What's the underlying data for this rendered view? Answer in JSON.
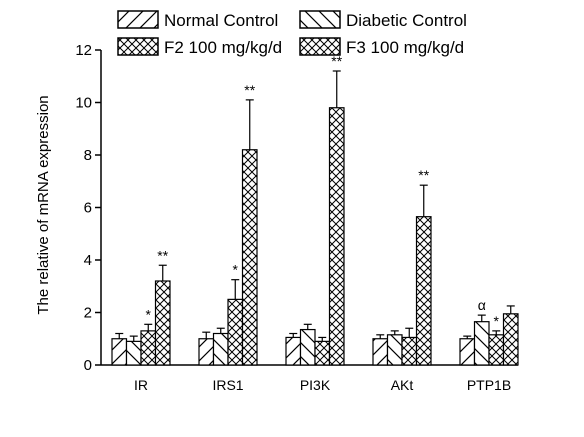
{
  "chart_data": {
    "type": "bar",
    "ylabel": "The relative of mRNA expression",
    "xlabel": "",
    "ylim": [
      0,
      12
    ],
    "yticks": [
      0,
      2,
      4,
      6,
      8,
      10,
      12
    ],
    "categories": [
      "IR",
      "IRS1",
      "PI3K",
      "AKt",
      "PTP1B"
    ],
    "legend_position": "top",
    "series": [
      {
        "name": "Normal Control",
        "pattern": "forward-diagonal",
        "values": [
          1.0,
          1.0,
          1.05,
          1.0,
          1.0
        ],
        "errors": [
          0.2,
          0.25,
          0.15,
          0.15,
          0.1
        ],
        "annotations": [
          "",
          "",
          "",
          "",
          ""
        ]
      },
      {
        "name": "Diabetic Control",
        "pattern": "back-diagonal",
        "values": [
          0.9,
          1.2,
          1.35,
          1.15,
          1.65
        ],
        "errors": [
          0.2,
          0.2,
          0.2,
          0.15,
          0.25
        ],
        "annotations": [
          "",
          "",
          "",
          "",
          "α"
        ]
      },
      {
        "name": "F2  100 mg/kg/d",
        "pattern": "crosshatch",
        "values": [
          1.3,
          2.5,
          0.9,
          1.05,
          1.15
        ],
        "errors": [
          0.25,
          0.75,
          0.15,
          0.35,
          0.15
        ],
        "annotations": [
          "*",
          "*",
          "",
          "",
          "*"
        ]
      },
      {
        "name": "F3 100 mg/kg/d",
        "pattern": "crosshatch",
        "values": [
          3.2,
          8.2,
          9.8,
          5.65,
          1.95
        ],
        "errors": [
          0.6,
          1.9,
          1.4,
          1.2,
          0.3
        ],
        "annotations": [
          "**",
          "**",
          "**",
          "**",
          ""
        ]
      }
    ]
  }
}
